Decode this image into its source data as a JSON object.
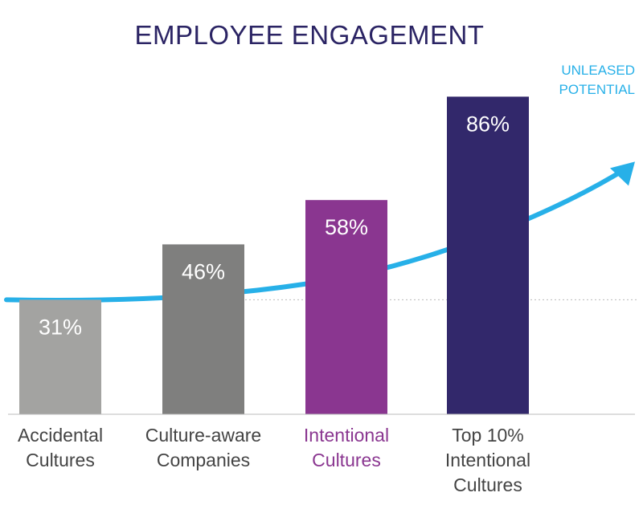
{
  "chart_data": {
    "type": "bar",
    "title": "EMPLOYEE ENGAGEMENT",
    "categories": [
      [
        "Accidental",
        "Cultures"
      ],
      [
        "Culture-aware",
        "Companies"
      ],
      [
        "Intentional",
        "Cultures"
      ],
      [
        "Top 10%",
        "Intentional",
        "Cultures"
      ]
    ],
    "values": [
      31,
      46,
      58,
      86
    ],
    "value_labels": [
      "31%",
      "46%",
      "58%",
      "86%"
    ],
    "ylim": [
      0,
      100
    ],
    "grid": false,
    "annotation": [
      "UNLEASED",
      "POTENTIAL"
    ],
    "reference_line": 31,
    "trend_line": "rising curve with arrow toward the annotation"
  },
  "colors": {
    "title": "#2b2464",
    "bars": [
      "#a3a3a1",
      "#7f7f7e",
      "#8a3690",
      "#32286b"
    ],
    "category_labels": [
      "#444444",
      "#444444",
      "#8a3690",
      "#444444"
    ],
    "curve": "#27b0e8",
    "annotation": "#27b0e8",
    "baseline": "#bbbbbb",
    "reference_line": "#bbbbbb"
  }
}
